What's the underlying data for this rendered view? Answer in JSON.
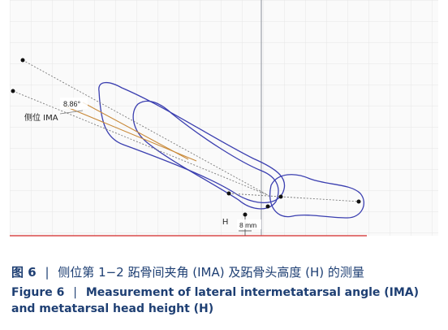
{
  "figure": {
    "angle_value": "8.86°",
    "ima_label": "侧位 IMA",
    "height_marker": "H",
    "height_value": "8 mm"
  },
  "caption_cn": {
    "label": "图 6",
    "separator": "|",
    "text": "侧位第 1−2 跖骨间夹角 (IMA) 及跖骨头高度 (H) 的测量"
  },
  "caption_en": {
    "label": "Figure 6",
    "separator": "|",
    "text": "Measurement of lateral intermetatarsal angle (IMA) and metatarsal head height (H)"
  },
  "colors": {
    "outline": "#3b3fb0",
    "angle_line": "#c98a3a",
    "ground_line": "#d94a4a",
    "grid": "#e3e3e3",
    "caption": "#1e3f73"
  }
}
